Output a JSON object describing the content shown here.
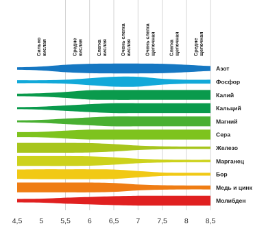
{
  "chart_data": {
    "type": "area",
    "x_axis": {
      "min": 4.5,
      "max": 8.5,
      "ticks": [
        "4,5",
        "5",
        "5,5",
        "6",
        "6,5",
        "7",
        "7,5",
        "8",
        "8,5"
      ],
      "tick_values": [
        4.5,
        5,
        5.5,
        6,
        6.5,
        7,
        7.5,
        8,
        8.5
      ]
    },
    "zones": [
      {
        "label": "Сильно кислая",
        "from": 4.5,
        "to": 5.5
      },
      {
        "label": "Средне кислая",
        "from": 5.5,
        "to": 6.0
      },
      {
        "label": "Слегка кислая",
        "from": 6.0,
        "to": 6.5
      },
      {
        "label": "Очень слегка кислая",
        "from": 6.5,
        "to": 7.0
      },
      {
        "label": "Очень слегка щелочная",
        "from": 7.0,
        "to": 7.5
      },
      {
        "label": "Слегка щелочная",
        "from": 7.5,
        "to": 8.0
      },
      {
        "label": "Средне щелочная",
        "from": 8.0,
        "to": 8.5
      }
    ],
    "series": [
      {
        "name": "Азот",
        "color": "#1577c2",
        "x": [
          4.5,
          5.0,
          5.5,
          6.0,
          6.5,
          7.0,
          7.5,
          8.0,
          8.5
        ],
        "values": [
          0.25,
          0.4,
          0.75,
          0.95,
          1.0,
          1.0,
          0.95,
          0.75,
          0.5
        ]
      },
      {
        "name": "Фосфор",
        "color": "#12a9d9",
        "x": [
          4.5,
          5.0,
          5.5,
          6.0,
          6.5,
          7.0,
          7.5,
          8.0,
          8.5
        ],
        "values": [
          0.3,
          0.3,
          0.4,
          0.7,
          1.0,
          1.0,
          0.6,
          0.4,
          0.4
        ]
      },
      {
        "name": "Калий",
        "color": "#0a9a4c",
        "x": [
          4.5,
          5.0,
          5.5,
          6.0,
          6.5,
          7.0,
          7.5,
          8.0,
          8.5
        ],
        "values": [
          0.25,
          0.35,
          0.6,
          0.95,
          1.0,
          1.0,
          1.0,
          1.0,
          1.0
        ]
      },
      {
        "name": "Кальций",
        "color": "#0a9a4c",
        "x": [
          4.5,
          5.0,
          5.5,
          6.0,
          6.5,
          7.0,
          7.5,
          8.0,
          8.5
        ],
        "values": [
          0.2,
          0.3,
          0.55,
          0.8,
          1.0,
          1.0,
          1.0,
          1.0,
          1.0
        ]
      },
      {
        "name": "Магний",
        "color": "#49b032",
        "x": [
          4.5,
          5.0,
          5.5,
          6.0,
          6.5,
          7.0,
          7.5,
          8.0,
          8.5
        ],
        "values": [
          0.2,
          0.3,
          0.55,
          0.8,
          1.0,
          1.0,
          1.0,
          1.0,
          1.0
        ]
      },
      {
        "name": "Сера",
        "color": "#7ec31e",
        "x": [
          4.5,
          5.0,
          5.5,
          6.0,
          6.5,
          7.0,
          7.5,
          8.0,
          8.5
        ],
        "values": [
          0.5,
          0.55,
          0.8,
          1.0,
          1.0,
          1.0,
          1.0,
          1.0,
          1.0
        ]
      },
      {
        "name": "Железо",
        "color": "#a7c51c",
        "x": [
          4.5,
          5.0,
          5.5,
          6.0,
          6.5,
          7.0,
          7.5,
          8.0,
          8.5
        ],
        "values": [
          1.0,
          1.0,
          1.0,
          0.95,
          0.75,
          0.45,
          0.3,
          0.25,
          0.25
        ]
      },
      {
        "name": "Марганец",
        "color": "#cdd21c",
        "x": [
          4.5,
          5.0,
          5.5,
          6.0,
          6.5,
          7.0,
          7.5,
          8.0,
          8.5
        ],
        "values": [
          1.0,
          1.0,
          1.0,
          0.95,
          0.75,
          0.45,
          0.3,
          0.25,
          0.25
        ]
      },
      {
        "name": "Бор",
        "color": "#f1c915",
        "x": [
          4.5,
          5.0,
          5.5,
          6.0,
          6.5,
          7.0,
          7.5,
          8.0,
          8.5
        ],
        "values": [
          0.95,
          1.0,
          1.0,
          1.0,
          0.95,
          0.65,
          0.35,
          0.3,
          0.3
        ]
      },
      {
        "name": "Медь и цинк",
        "color": "#ef7d14",
        "x": [
          4.5,
          5.0,
          5.5,
          6.0,
          6.5,
          7.0,
          7.5,
          8.0,
          8.5
        ],
        "values": [
          1.0,
          1.0,
          1.0,
          1.0,
          0.9,
          0.6,
          0.45,
          0.4,
          0.4
        ]
      },
      {
        "name": "Молибден",
        "color": "#e02020",
        "x": [
          4.5,
          5.0,
          5.5,
          6.0,
          6.5,
          7.0,
          7.5,
          8.0,
          8.5
        ],
        "values": [
          0.35,
          0.4,
          0.6,
          0.75,
          0.9,
          1.0,
          1.0,
          1.0,
          1.0
        ]
      }
    ],
    "grid": true
  }
}
